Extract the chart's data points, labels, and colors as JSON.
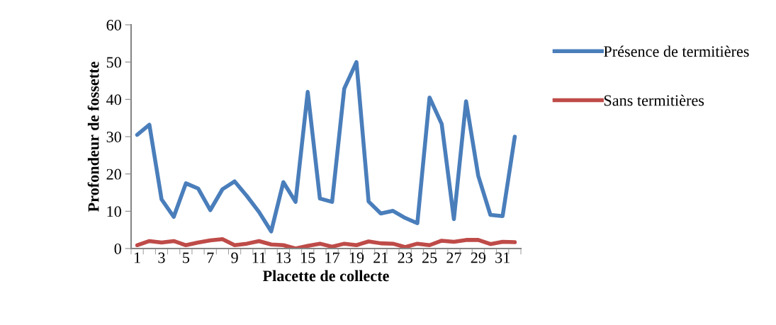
{
  "chart_data": {
    "type": "line",
    "xlabel": "Placette de collecte",
    "ylabel": "Profondeur de fossette",
    "categories": [
      "1",
      null,
      "3",
      null,
      "5",
      null,
      "7",
      null,
      "9",
      null,
      "11",
      null,
      "13",
      null,
      "15",
      null,
      "17",
      null,
      "19",
      null,
      "21",
      null,
      "23",
      null,
      "25",
      null,
      "27",
      null,
      "29",
      null,
      "31",
      null
    ],
    "series": [
      {
        "name": "Présence de termitières",
        "color": "#4a7ebb",
        "values": [
          30.5,
          33.2,
          13.2,
          8.5,
          17.5,
          16.1,
          10.3,
          15.9,
          18.0,
          14.1,
          9.8,
          4.6,
          17.8,
          12.5,
          42,
          13.4,
          12.5,
          42.9,
          50,
          12.6,
          9.4,
          10.1,
          8.2,
          6.8,
          40.5,
          33.4,
          7.9,
          39.5,
          19.5,
          9.0,
          8.7,
          30.0
        ]
      },
      {
        "name": "Sans termitières",
        "color": "#be4b48",
        "values": [
          0.9,
          2.0,
          1.6,
          2.0,
          0.9,
          1.6,
          2.2,
          2.5,
          0.9,
          1.3,
          2.0,
          1.1,
          0.9,
          0.0,
          0.7,
          1.3,
          0.5,
          1.3,
          0.9,
          1.9,
          1.4,
          1.3,
          0.4,
          1.3,
          0.9,
          2.1,
          1.8,
          2.3,
          2.3,
          1.2,
          1.8,
          1.7
        ]
      }
    ],
    "ylim": [
      0,
      60
    ],
    "yticks": [
      0,
      10,
      20,
      30,
      40,
      50,
      60
    ],
    "grid": false,
    "legend": "top right",
    "marker": "none",
    "line_style": "solid"
  }
}
